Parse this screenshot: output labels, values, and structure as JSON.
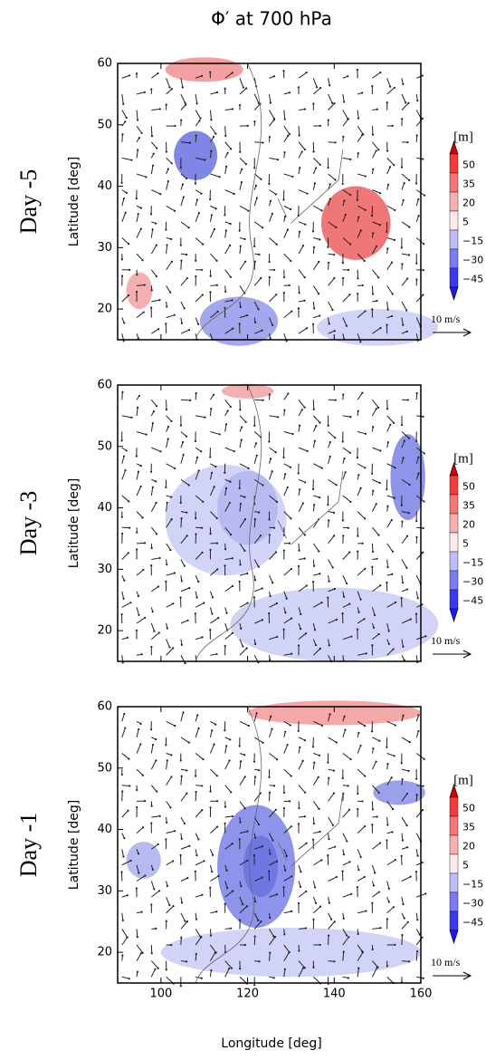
{
  "chart_data": {
    "type": "map",
    "title": "Φ′ at 700 hPa",
    "panels": [
      "Day -5",
      "Day -3",
      "Day -1"
    ],
    "ylabel": "Latitude [deg]",
    "xlabel": "Longitude [deg]",
    "xlim": [
      90,
      160
    ],
    "ylim": [
      15,
      60
    ],
    "xticks": [
      100,
      120,
      140,
      160
    ],
    "yticks": [
      20,
      30,
      40,
      50,
      60
    ],
    "colorbar_unit": "[m]",
    "colorbar_levels": [
      50,
      35,
      20,
      5,
      {
        "value": -15,
        "label": "−15"
      },
      {
        "value": -30,
        "label": "−30"
      },
      {
        "value": -45,
        "label": "−45"
      }
    ],
    "vector_key": "10 m/s"
  }
}
